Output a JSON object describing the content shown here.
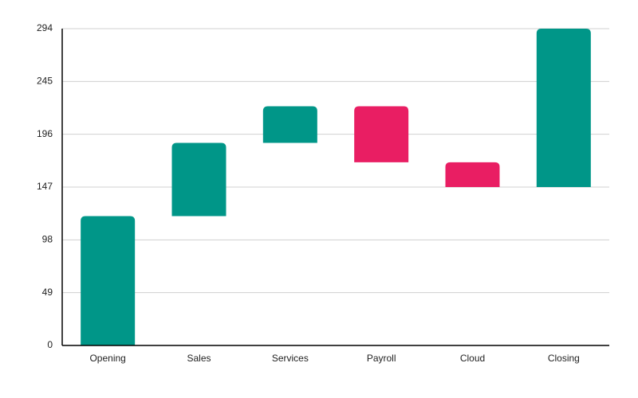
{
  "chart_data": {
    "type": "waterfall",
    "categories": [
      "Opening",
      "Sales",
      "Services",
      "Payroll",
      "Cloud",
      "Closing"
    ],
    "values": [
      120,
      68,
      34,
      -52,
      -23,
      147
    ],
    "increase_color": "#009688",
    "decrease_color": "#e91e63",
    "ylim": [
      0,
      294
    ],
    "yticks": [
      0,
      49,
      98,
      147,
      196,
      245,
      294
    ],
    "grid": true
  }
}
